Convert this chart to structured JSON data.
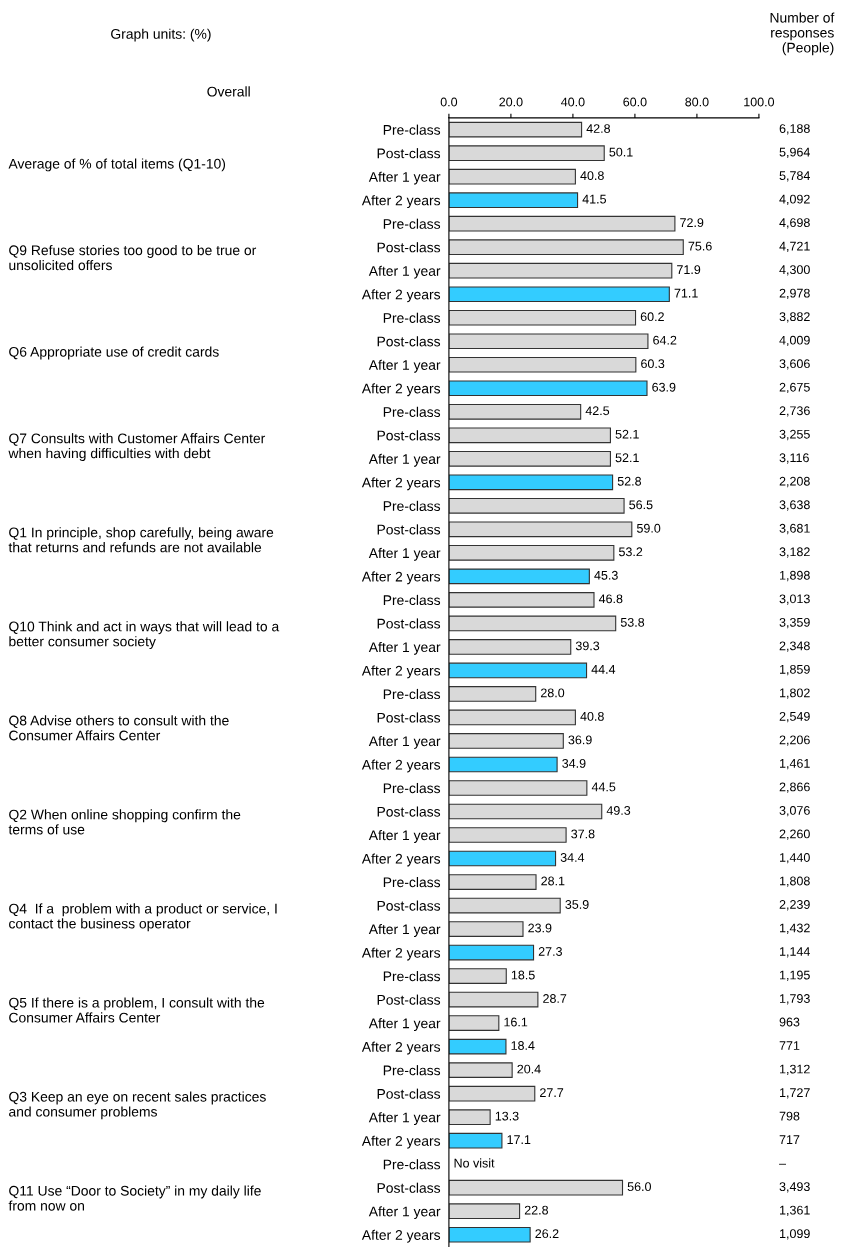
{
  "chart_data": {
    "type": "bar",
    "orientation": "horizontal",
    "categories": [
      "Pre-class",
      "Post-class",
      "After 1 year",
      "After 2 years",
      "Pre-class",
      "Post-class",
      "After 1 year",
      "After 2 years",
      "Pre-class",
      "Post-class",
      "After 1 year",
      "After 2 years",
      "Pre-class",
      "Post-class",
      "After 1 year",
      "After 2 years",
      "Pre-class",
      "Post-class",
      "After 1 year",
      "After 2 years",
      "Pre-class",
      "Post-class",
      "After 1 year",
      "After 2 years",
      "Pre-class",
      "Post-class",
      "After 1 year",
      "After 2 years",
      "Pre-class",
      "Post-class",
      "After 1 year",
      "After 2 years",
      "Pre-class",
      "Post-class",
      "After 1 year",
      "After 2 years",
      "Pre-class",
      "Post-class",
      "After 1 year",
      "After 2 years",
      "Pre-class",
      "Post-class",
      "After 1 year",
      "After 2 years",
      "Pre-class",
      "Post-class",
      "After 1 year",
      "After 2 years"
    ],
    "values": [
      42.8,
      50.1,
      40.8,
      41.5,
      72.9,
      75.6,
      71.9,
      71.1,
      60.2,
      64.2,
      60.3,
      63.9,
      42.5,
      52.1,
      52.1,
      52.8,
      56.5,
      59.0,
      53.2,
      45.3,
      46.8,
      53.8,
      39.3,
      44.4,
      28.0,
      40.8,
      36.9,
      34.9,
      44.5,
      49.3,
      37.8,
      34.4,
      28.1,
      35.9,
      23.9,
      27.3,
      18.5,
      28.7,
      16.1,
      18.4,
      20.4,
      27.7,
      13.3,
      17.1,
      null,
      56.0,
      22.8,
      26.2
    ],
    "value_labels": [
      "42.8",
      "50.1",
      "40.8",
      "41.5",
      "72.9",
      "75.6",
      "71.9",
      "71.1",
      "60.2",
      "64.2",
      "60.3",
      "63.9",
      "42.5",
      "52.1",
      "52.1",
      "52.8",
      "56.5",
      "59.0",
      "53.2",
      "45.3",
      "46.8",
      "53.8",
      "39.3",
      "44.4",
      "28.0",
      "40.8",
      "36.9",
      "34.9",
      "44.5",
      "49.3",
      "37.8",
      "34.4",
      "28.1",
      "35.9",
      "23.9",
      "27.3",
      "18.5",
      "28.7",
      "16.1",
      "18.4",
      "20.4",
      "27.7",
      "13.3",
      "17.1",
      "No visit",
      "56.0",
      "22.8",
      "26.2"
    ],
    "colors": [
      "#d9d9d9",
      "#d9d9d9",
      "#d9d9d9",
      "#33ccff",
      "#d9d9d9",
      "#d9d9d9",
      "#d9d9d9",
      "#33ccff",
      "#d9d9d9",
      "#d9d9d9",
      "#d9d9d9",
      "#33ccff",
      "#d9d9d9",
      "#d9d9d9",
      "#d9d9d9",
      "#33ccff",
      "#d9d9d9",
      "#d9d9d9",
      "#d9d9d9",
      "#33ccff",
      "#d9d9d9",
      "#d9d9d9",
      "#d9d9d9",
      "#33ccff",
      "#d9d9d9",
      "#d9d9d9",
      "#d9d9d9",
      "#33ccff",
      "#d9d9d9",
      "#d9d9d9",
      "#d9d9d9",
      "#33ccff",
      "#d9d9d9",
      "#d9d9d9",
      "#d9d9d9",
      "#33ccff",
      "#d9d9d9",
      "#d9d9d9",
      "#d9d9d9",
      "#33ccff",
      "#d9d9d9",
      "#d9d9d9",
      "#d9d9d9",
      "#33ccff",
      "#d9d9d9",
      "#d9d9d9",
      "#d9d9d9",
      "#33ccff"
    ],
    "xlim": [
      0,
      100
    ],
    "xticks": [
      {
        "value": 0,
        "label": "0.0"
      },
      {
        "value": 20,
        "label": "20.0"
      },
      {
        "value": 40,
        "label": "40.0"
      },
      {
        "value": 60,
        "label": "60.0"
      },
      {
        "value": 80,
        "label": "80.0"
      },
      {
        "value": 100,
        "label": "100.0"
      }
    ],
    "annotations": [
      "Graph units: (%)",
      "Number of\nresponses\n(People)",
      "Overall",
      "Average of % of total items (Q1-10)",
      "Q9 Refuse stories too good to be true or\nunsolicited offers",
      "Q6 Appropriate use of credit cards",
      "Q7 Consults with Customer Affairs Center\nwhen having difficulties with debt",
      "Q1 In principle, shop carefully, being aware\nthat returns and refunds are not available",
      "Q10 Think and act in ways that will lead to a\nbetter consumer society",
      "Q8 Advise others to consult with the\nConsumer Affairs Center",
      "Q2 When online shopping confirm the\nterms of use",
      "Q4  If a  problem with a product or service, I\ncontact the business operator",
      "Q5 If there is a problem, I consult with the\nConsumer Affairs Center",
      "Q3 Keep an eye on recent sales practices\nand consumer problems",
      "Q11 Use “Door to Society” in my daily life\nfrom now on",
      "6,188",
      "5,964",
      "5,784",
      "4,092",
      "4,698",
      "4,721",
      "4,300",
      "2,978",
      "3,882",
      "4,009",
      "3,606",
      "2,675",
      "2,736",
      "3,255",
      "3,116",
      "2,208",
      "3,638",
      "3,681",
      "3,182",
      "1,898",
      "3,013",
      "3,359",
      "2,348",
      "1,859",
      "1,802",
      "2,549",
      "2,206",
      "1,461",
      "2,866",
      "3,076",
      "2,260",
      "1,440",
      "1,808",
      "2,239",
      "1,432",
      "1,144",
      "1,195",
      "1,793",
      "963",
      "771",
      "1,312",
      "1,727",
      "798",
      "717",
      "–",
      "3,493",
      "1,361",
      "1,099"
    ]
  }
}
